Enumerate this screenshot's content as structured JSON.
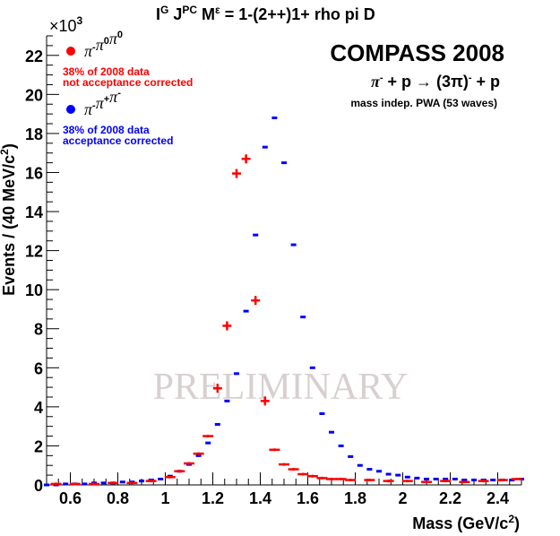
{
  "chart_data": {
    "type": "scatter",
    "title_main": "I",
    "title_sup1": "G",
    "title_mid": " J",
    "title_sup2": "PC",
    "title_mid2": " M",
    "title_sup3": "ε",
    "title_rest": " = 1-(2++)1+ rho pi D",
    "xlabel_main": "Mass (GeV/c",
    "xlabel_sup": "2",
    "xlabel_end": ")",
    "ylabel_main": "Events / (40 MeV/c",
    "ylabel_sup": "2",
    "ylabel_end": ")",
    "y_exponent_base": "×10",
    "y_exponent_power": "3",
    "xlim": [
      0.5,
      2.5
    ],
    "ylim": [
      0,
      23
    ],
    "x_ticks": [
      "0.6",
      "0.8",
      "1",
      "1.2",
      "1.4",
      "1.6",
      "1.8",
      "2",
      "2.2",
      "2.4"
    ],
    "y_ticks": [
      "0",
      "2",
      "4",
      "6",
      "8",
      "10",
      "12",
      "14",
      "16",
      "18",
      "20",
      "22"
    ],
    "experiment": "COMPASS 2008",
    "reaction_lhs": "π",
    "reaction_lhs_sup": "-",
    "reaction_mid": " + p →  (3π)",
    "reaction_mid_sup": "-",
    "reaction_rhs": " + p",
    "pwa_note": "mass indep. PWA (53 waves)",
    "watermark": "PRELIMINARY",
    "legend": [
      {
        "label_parts": [
          [
            "π",
            ""
          ],
          [
            "",
            "-"
          ],
          [
            "π",
            ""
          ],
          [
            "",
            "0"
          ],
          [
            "π",
            ""
          ],
          [
            "",
            "0"
          ]
        ],
        "note1": "38% of 2008 data",
        "note2": "not acceptance corrected",
        "color": "#ff0000"
      },
      {
        "label_parts": [
          [
            "π",
            ""
          ],
          [
            "",
            "-"
          ],
          [
            "π",
            ""
          ],
          [
            "",
            "+"
          ],
          [
            "π",
            ""
          ],
          [
            "",
            "-"
          ]
        ],
        "note1": "38% of 2008 data",
        "note2": "acceptance corrected",
        "color": "#0000ff"
      }
    ],
    "series": [
      {
        "name": "π-π0π0",
        "color": "#ff0000",
        "x": [
          0.54,
          0.62,
          0.7,
          0.78,
          0.86,
          0.94,
          1.02,
          1.06,
          1.1,
          1.14,
          1.18,
          1.22,
          1.26,
          1.3,
          1.34,
          1.38,
          1.42,
          1.46,
          1.5,
          1.54,
          1.58,
          1.62,
          1.66,
          1.7,
          1.74,
          1.78,
          1.86,
          1.94,
          2.02,
          2.1,
          2.18,
          2.26,
          2.34,
          2.42,
          2.48
        ],
        "y": [
          0.05,
          0.05,
          0.05,
          0.1,
          0.1,
          0.2,
          0.4,
          0.7,
          1.1,
          1.6,
          2.5,
          4.95,
          8.15,
          15.95,
          16.7,
          9.45,
          4.3,
          1.8,
          1.05,
          0.8,
          0.55,
          0.45,
          0.35,
          0.3,
          0.3,
          0.25,
          0.25,
          0.2,
          0.2,
          0.15,
          0.2,
          0.15,
          0.2,
          0.25,
          0.3
        ]
      },
      {
        "name": "π-π+π-",
        "color": "#0000ff",
        "x": [
          0.5,
          0.54,
          0.58,
          0.62,
          0.66,
          0.7,
          0.74,
          0.78,
          0.82,
          0.86,
          0.9,
          0.94,
          0.98,
          1.02,
          1.06,
          1.1,
          1.14,
          1.18,
          1.22,
          1.26,
          1.3,
          1.34,
          1.38,
          1.42,
          1.46,
          1.5,
          1.54,
          1.58,
          1.62,
          1.66,
          1.7,
          1.74,
          1.78,
          1.82,
          1.86,
          1.9,
          1.94,
          1.98,
          2.02,
          2.06,
          2.1,
          2.14,
          2.18,
          2.22,
          2.26,
          2.3,
          2.34,
          2.38,
          2.42,
          2.46,
          2.5
        ],
        "y": [
          0.0,
          0.0,
          0.05,
          0.05,
          0.05,
          0.1,
          0.1,
          0.1,
          0.15,
          0.15,
          0.2,
          0.25,
          0.3,
          0.45,
          0.7,
          1.05,
          1.5,
          2.15,
          3.1,
          4.3,
          5.7,
          8.9,
          12.8,
          17.3,
          18.8,
          16.5,
          12.3,
          8.6,
          6.0,
          3.65,
          2.7,
          2.0,
          1.45,
          1.0,
          0.8,
          0.7,
          0.55,
          0.5,
          0.4,
          0.35,
          0.3,
          0.3,
          0.3,
          0.3,
          0.25,
          0.25,
          0.25,
          0.25,
          0.25,
          0.25,
          0.3
        ]
      }
    ]
  }
}
